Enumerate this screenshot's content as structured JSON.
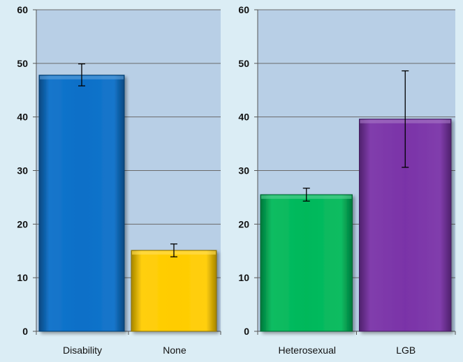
{
  "chart_data": [
    {
      "type": "bar",
      "title": "",
      "xlabel": "",
      "ylabel": "",
      "ylim": [
        0,
        60
      ],
      "yticks": [
        0,
        10,
        20,
        30,
        40,
        50,
        60
      ],
      "grid": true,
      "categories": [
        "Disability",
        "None"
      ],
      "values": [
        47.8,
        15.1
      ],
      "error_low": [
        45.8,
        13.9
      ],
      "error_high": [
        49.9,
        16.3
      ],
      "colors": [
        "#0a6fc8",
        "#ffcc00"
      ]
    },
    {
      "type": "bar",
      "title": "",
      "xlabel": "",
      "ylabel": "",
      "ylim": [
        0,
        60
      ],
      "yticks": [
        0,
        10,
        20,
        30,
        40,
        50,
        60
      ],
      "grid": true,
      "categories": [
        "Heterosexual",
        "LGB"
      ],
      "values": [
        25.5,
        39.6
      ],
      "error_low": [
        24.3,
        30.6
      ],
      "error_high": [
        26.7,
        48.6
      ],
      "colors": [
        "#00b85a",
        "#7a33a8"
      ]
    }
  ]
}
